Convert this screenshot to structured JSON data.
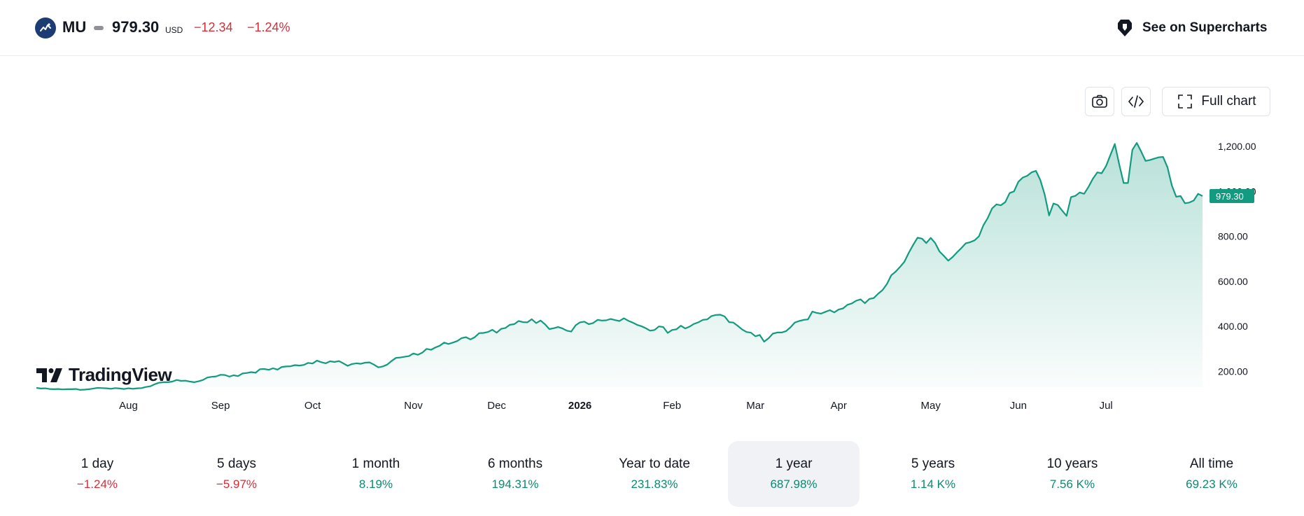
{
  "header": {
    "ticker": "MU",
    "price": "979.30",
    "currency": "USD",
    "change": "−12.34",
    "change_pct": "−1.24%",
    "supercharts_label": "See on Supercharts"
  },
  "toolbar": {
    "full_chart_label": "Full chart"
  },
  "brand": {
    "name": "TradingView"
  },
  "colors": {
    "line": "#129b80",
    "negative": "#d32f3a",
    "positive": "#0c8a72",
    "price_label_bg": "#129b80"
  },
  "chart_data": {
    "type": "area",
    "ylim": [
      130,
      1290
    ],
    "y_ticks": [
      "200.00",
      "400.00",
      "600.00",
      "800.00",
      "1,000.00",
      "1,200.00"
    ],
    "y_tick_values": [
      200,
      400,
      600,
      800,
      1000,
      1200
    ],
    "x_ticks": [
      "Aug",
      "Sep",
      "Oct",
      "Nov",
      "Dec",
      "2026",
      "Feb",
      "Mar",
      "Apr",
      "May",
      "Jun",
      "Jul"
    ],
    "last_price_label": "979.30",
    "grid": false,
    "series": [
      {
        "values": [
          127,
          124,
          125,
          122,
          121,
          122,
          120,
          121,
          121,
          122,
          118,
          119,
          121,
          124,
          127,
          126,
          125,
          123,
          126,
          124,
          122,
          125,
          123,
          125,
          126,
          131,
          134,
          143,
          150,
          152,
          152,
          155,
          162,
          158,
          159,
          155,
          152,
          156,
          162,
          173,
          176,
          178,
          185,
          184,
          177,
          183,
          179,
          191,
          193,
          197,
          194,
          210,
          211,
          207,
          214,
          208,
          220,
          222,
          223,
          228,
          226,
          229,
          238,
          235,
          248,
          241,
          236,
          245,
          242,
          246,
          236,
          225,
          233,
          236,
          234,
          239,
          240,
          230,
          218,
          222,
          230,
          246,
          260,
          262,
          265,
          268,
          280,
          274,
          283,
          300,
          296,
          306,
          314,
          328,
          322,
          328,
          335,
          348,
          352,
          342,
          352,
          370,
          371,
          375,
          385,
          372,
          389,
          393,
          407,
          410,
          424,
          419,
          418,
          432,
          415,
          426,
          410,
          388,
          392,
          397,
          391,
          381,
          377,
          405,
          418,
          421,
          410,
          415,
          429,
          426,
          427,
          433,
          428,
          424,
          436,
          425,
          417,
          407,
          401,
          392,
          381,
          384,
          400,
          397,
          371,
          384,
          387,
          403,
          391,
          399,
          411,
          418,
          429,
          431,
          446,
          451,
          452,
          444,
          419,
          417,
          402,
          386,
          375,
          372,
          356,
          362,
          332,
          347,
          368,
          373,
          373,
          379,
          396,
          417,
          424,
          429,
          431,
          466,
          460,
          457,
          465,
          472,
          462,
          475,
          480,
          496,
          502,
          514,
          520,
          503,
          522,
          526,
          545,
          561,
          588,
          627,
          643,
          664,
          687,
          727,
          762,
          794,
          790,
          770,
          793,
          771,
          733,
          713,
          692,
          708,
          729,
          748,
          769,
          774,
          782,
          800,
          848,
          881,
          924,
          942,
          938,
          952,
          992,
          1000,
          1042,
          1061,
          1069,
          1084,
          1091,
          1050,
          986,
          893,
          946,
          939,
          914,
          891,
          974,
          980,
          995,
          989,
          1020,
          1056,
          1084,
          1080,
          1112,
          1162,
          1210,
          1120,
          1037,
          1037,
          1184,
          1215,
          1177,
          1135,
          1139,
          1145,
          1151,
          1153,
          1107,
          1026,
          976,
          979,
          947,
          950,
          959,
          989,
          979
        ]
      }
    ]
  }
}
